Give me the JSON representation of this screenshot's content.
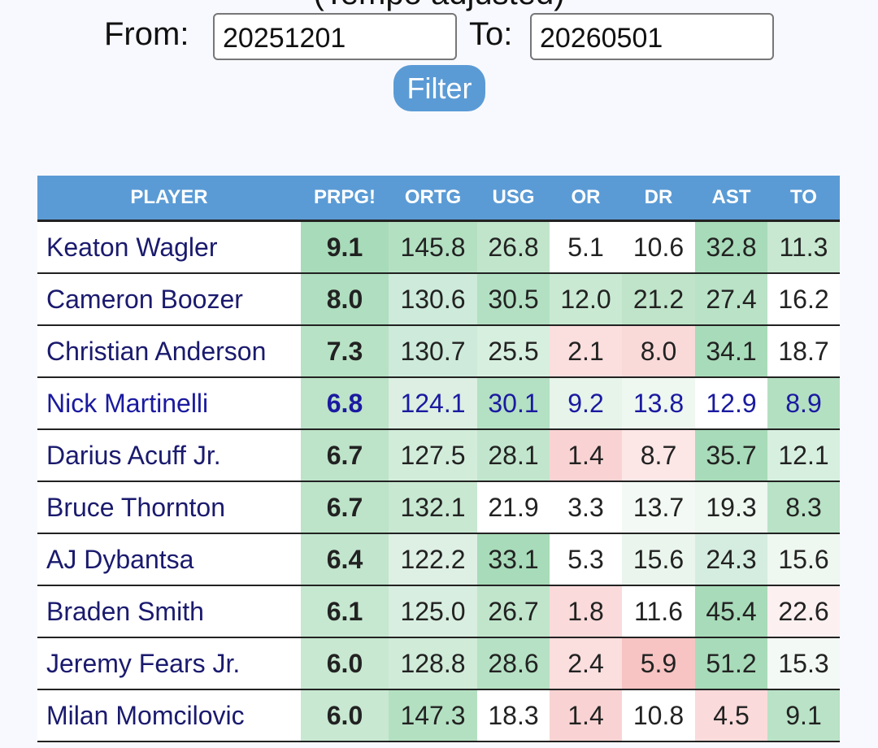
{
  "header": {
    "subtitle": "(Tempo adjusted)",
    "from_label": "From:",
    "from_value": "20251201",
    "to_label": "To:",
    "to_value": "20260501",
    "filter_button": "Filter"
  },
  "table": {
    "columns": [
      "PLAYER",
      "PRPG!",
      "ORTG",
      "USG",
      "OR",
      "DR",
      "AST",
      "TO"
    ],
    "header_color": "#5b9bd5",
    "rows": [
      [
        "Keaton Wagler",
        "9.1",
        "145.8",
        "26.8",
        "5.1",
        "10.6",
        "32.8",
        "11.3"
      ],
      [
        "Cameron Boozer",
        "8.0",
        "130.6",
        "30.5",
        "12.0",
        "21.2",
        "27.4",
        "16.2"
      ],
      [
        "Christian Anderson",
        "7.3",
        "130.7",
        "25.5",
        "2.1",
        "8.0",
        "34.1",
        "18.7"
      ],
      [
        "Nick Martinelli",
        "6.8",
        "124.1",
        "30.1",
        "9.2",
        "13.8",
        "12.9",
        "8.9"
      ],
      [
        "Darius Acuff Jr.",
        "6.7",
        "127.5",
        "28.1",
        "1.4",
        "8.7",
        "35.7",
        "12.1"
      ],
      [
        "Bruce Thornton",
        "6.7",
        "132.1",
        "21.9",
        "3.3",
        "13.7",
        "19.3",
        "8.3"
      ],
      [
        "AJ Dybantsa",
        "6.4",
        "122.2",
        "33.1",
        "5.3",
        "15.6",
        "24.3",
        "15.6"
      ],
      [
        "Braden Smith",
        "6.1",
        "125.0",
        "26.7",
        "1.8",
        "11.6",
        "45.4",
        "22.6"
      ],
      [
        "Jeremy Fears Jr.",
        "6.0",
        "128.8",
        "28.6",
        "2.4",
        "5.9",
        "51.2",
        "15.3"
      ],
      [
        "Milan Momcilovic",
        "6.0",
        "147.3",
        "18.3",
        "1.4",
        "10.8",
        "4.5",
        "9.1"
      ]
    ],
    "cell_colors": [
      [
        "#ffffff",
        "#a8dbb9",
        "#b4e0c2",
        "#c0e5cb",
        "#ffffff",
        "#ffffff",
        "#a8dbb9",
        "#c8e8d1"
      ],
      [
        "#ffffff",
        "#b0dec0",
        "#cdeada",
        "#b3e0c3",
        "#c9e9d2",
        "#bfe4c9",
        "#b9e2c6",
        "#ffffff"
      ],
      [
        "#ffffff",
        "#b8e2c5",
        "#cdeada",
        "#d7efdf",
        "#fbdede",
        "#fad9d9",
        "#a8dbb9",
        "#ffffff"
      ],
      [
        "#ffffff",
        "#bde3c8",
        "#dcefe2",
        "#b4e0c3",
        "#e6f4ea",
        "#eef7f0",
        "#ffffff",
        "#b4e0c2"
      ],
      [
        "#ffffff",
        "#bde3c8",
        "#d2ecda",
        "#c2e6cd",
        "#f9d3d3",
        "#fce6e6",
        "#a8dbb9",
        "#d7efdf"
      ],
      [
        "#ffffff",
        "#bde3c8",
        "#c8e8d1",
        "#ffffff",
        "#ffffff",
        "#f3f9f4",
        "#eef7f0",
        "#b9e2c6"
      ],
      [
        "#ffffff",
        "#c2e5cd",
        "#deefe4",
        "#a8dbb9",
        "#ffffff",
        "#eaf6ed",
        "#d5ede0",
        "#eef7f0"
      ],
      [
        "#ffffff",
        "#c6e7d0",
        "#d8eee0",
        "#c0e5cb",
        "#fadada",
        "#ffffff",
        "#a8dbb9",
        "#fdf0f0"
      ],
      [
        "#ffffff",
        "#c8e8d1",
        "#d0ebd8",
        "#b6e1c4",
        "#fbdede",
        "#f7c3c3",
        "#a8dbb9",
        "#f3f9f4"
      ],
      [
        "#ffffff",
        "#c8e8d1",
        "#b4e0c2",
        "#ffffff",
        "#f9d3d3",
        "#ffffff",
        "#fadada",
        "#b9e2c6"
      ]
    ]
  }
}
